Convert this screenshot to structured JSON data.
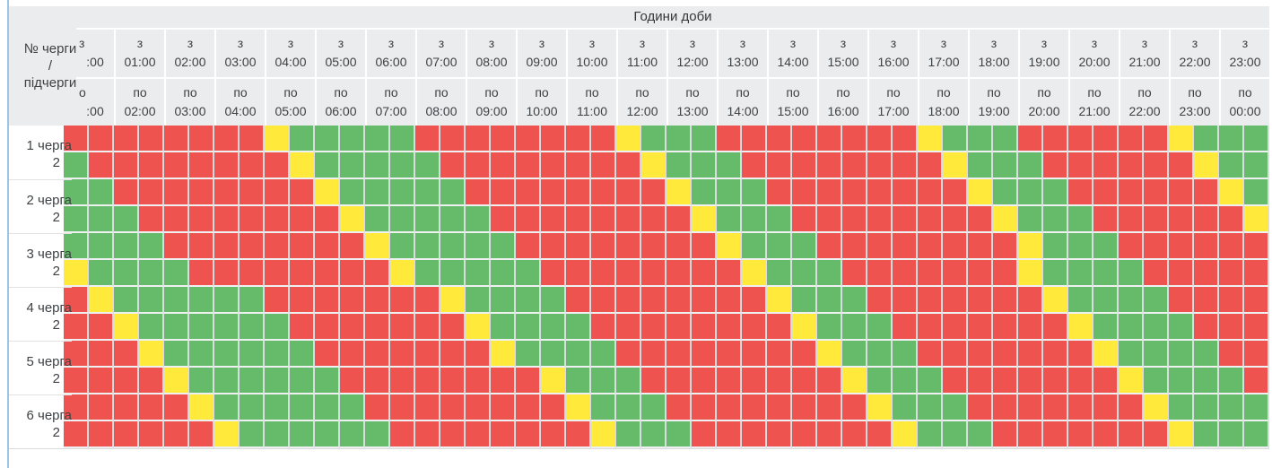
{
  "panel": {
    "accent_color": "#9dc3e6",
    "background": "#ffffff",
    "header_background": "#eaecee",
    "text_color": "#3e4245"
  },
  "header": {
    "title": "Години доби",
    "corner": {
      "line1": "№ черги",
      "line2": "/",
      "line3": "підчерги"
    },
    "hours": [
      {
        "from_prefix": "з",
        "from": ":00",
        "to_prefix": "о",
        "to": ":00"
      },
      {
        "from_prefix": "з",
        "from": "01:00",
        "to_prefix": "по",
        "to": "02:00"
      },
      {
        "from_prefix": "з",
        "from": "02:00",
        "to_prefix": "по",
        "to": "03:00"
      },
      {
        "from_prefix": "з",
        "from": "03:00",
        "to_prefix": "по",
        "to": "04:00"
      },
      {
        "from_prefix": "з",
        "from": "04:00",
        "to_prefix": "по",
        "to": "05:00"
      },
      {
        "from_prefix": "з",
        "from": "05:00",
        "to_prefix": "по",
        "to": "06:00"
      },
      {
        "from_prefix": "з",
        "from": "06:00",
        "to_prefix": "по",
        "to": "07:00"
      },
      {
        "from_prefix": "з",
        "from": "07:00",
        "to_prefix": "по",
        "to": "08:00"
      },
      {
        "from_prefix": "з",
        "from": "08:00",
        "to_prefix": "по",
        "to": "09:00"
      },
      {
        "from_prefix": "з",
        "from": "09:00",
        "to_prefix": "по",
        "to": "10:00"
      },
      {
        "from_prefix": "з",
        "from": "10:00",
        "to_prefix": "по",
        "to": "11:00"
      },
      {
        "from_prefix": "з",
        "from": "11:00",
        "to_prefix": "по",
        "to": "12:00"
      },
      {
        "from_prefix": "з",
        "from": "12:00",
        "to_prefix": "по",
        "to": "13:00"
      },
      {
        "from_prefix": "з",
        "from": "13:00",
        "to_prefix": "по",
        "to": "14:00"
      },
      {
        "from_prefix": "з",
        "from": "14:00",
        "to_prefix": "по",
        "to": "15:00"
      },
      {
        "from_prefix": "з",
        "from": "15:00",
        "to_prefix": "по",
        "to": "16:00"
      },
      {
        "from_prefix": "з",
        "from": "16:00",
        "to_prefix": "по",
        "to": "17:00"
      },
      {
        "from_prefix": "з",
        "from": "17:00",
        "to_prefix": "по",
        "to": "18:00"
      },
      {
        "from_prefix": "з",
        "from": "18:00",
        "to_prefix": "по",
        "to": "19:00"
      },
      {
        "from_prefix": "з",
        "from": "19:00",
        "to_prefix": "по",
        "to": "20:00"
      },
      {
        "from_prefix": "з",
        "from": "20:00",
        "to_prefix": "по",
        "to": "21:00"
      },
      {
        "from_prefix": "з",
        "from": "21:00",
        "to_prefix": "по",
        "to": "22:00"
      },
      {
        "from_prefix": "з",
        "from": "22:00",
        "to_prefix": "по",
        "to": "23:00"
      },
      {
        "from_prefix": "з",
        "from": "23:00",
        "to_prefix": "по",
        "to": "00:00"
      }
    ]
  },
  "cell_colors": {
    "R": "#ee5350",
    "G": "#66bb6a",
    "Y": "#ffe93b"
  },
  "schedule": {
    "half_hour_slots_per_row": 48,
    "queues": [
      {
        "label": "1 черга",
        "sub_label": "2",
        "rows": [
          "RRRRRRRRYGGGGGRRRRRRRRYGGGRRRRRRRRYGGGRRRRRRYGGG",
          "GRRRRRRRRYGGGGGRRRRRRRRYGGGRRRRRRRRYGGGRRRRRRYGG"
        ]
      },
      {
        "label": "2 черга",
        "sub_label": "2",
        "rows": [
          "GGRRRRRRRRYGGGGGRRRRRRRRYGGGRRRRRRRRYGGGRRRRRRYG",
          "GGGRRRRRRRRYGGGGGRRRRRRRRYGGGRRRRRRRRYGGGRRRRRRY"
        ]
      },
      {
        "label": "3 черга",
        "sub_label": "2",
        "rows": [
          "GGGGRRRRRRRRYGGGGGRRRRRRRRYGGGRRRRRRRRYGGGRRRRRR",
          "YGGGGRRRRRRRRYGGGGGRRRRRRRRYGGGRRRRRRRYGGGGRRRRR"
        ]
      },
      {
        "label": "4 черга",
        "sub_label": "2",
        "rows": [
          "RYGGGGGGRRRRRRRYGGGGRRRRRRRRYGGGRRRRRRRYGGGGRRRR",
          "RRYGGGGGGRRRRRRRYGGGGRRRRRRRRYGGGRRRRRRRYGGGGRRR"
        ]
      },
      {
        "label": "5 черга",
        "sub_label": "2",
        "rows": [
          "RRRYGGGGGGRRRRRRRYGGGGRRRRRRRRYGGGRRRRRRRYGGGGRR",
          "RRRRYGGGGGGRRRRRRRRYGGGRRRRRRRRYGGGRRRRRRRYGGGGR"
        ]
      },
      {
        "label": "6 черга",
        "sub_label": "2",
        "rows": [
          "RRRRRYGGGGGGRRRRRRRRYGGGRRRRRRRRYGGGRRRRRRRYGGGG",
          "RRRRRRYGGGGGGRRRRRRRRYGGGRRRRRRRRYGGGRRRRRRRYGGG"
        ]
      }
    ]
  }
}
